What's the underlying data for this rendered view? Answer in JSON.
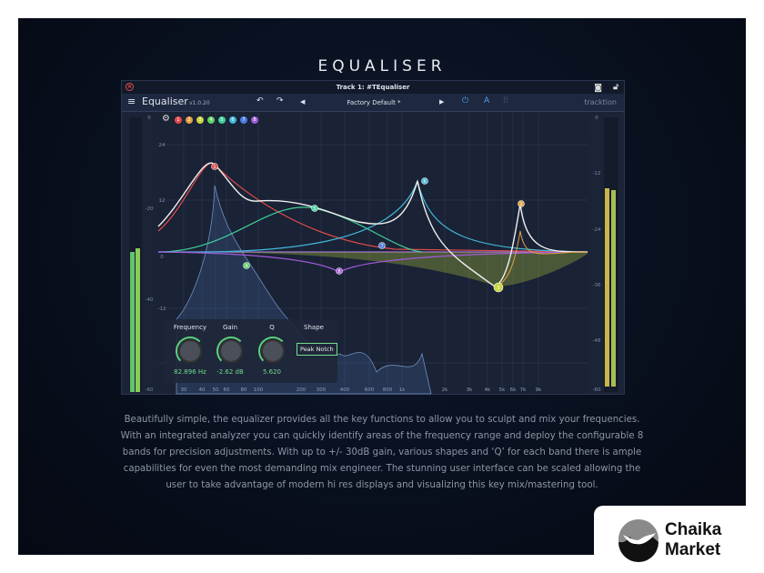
{
  "page": {
    "title": "EQUALISER",
    "description": "Beautifully simple, the equalizer provides all the key functions to allow you to sculpt and mix your frequencies. With an integrated analyzer you can quickly identify areas of the frequency range and deploy the configurable 8 bands for precision adjustments. With up to +/- 30dB gain, various shapes and ‘Q’ for each band there is ample capabilities for even the most demanding mix engineer. The stunning user interface can be scaled allowing the user to take advantage of modern hi res displays and visualizing this key mix/mastering tool."
  },
  "plugin": {
    "window_title": "Track 1: #TEqualiser",
    "name": "Equaliser",
    "version": "v1.0.20",
    "preset": "Factory Default *",
    "ab_a": "A",
    "ab_b": "B",
    "brand": "tracktion"
  },
  "bands": [
    {
      "n": "1",
      "color": "#e14b4b"
    },
    {
      "n": "2",
      "color": "#e3a040"
    },
    {
      "n": "3",
      "color": "#c8d640"
    },
    {
      "n": "4",
      "color": "#5fd35f"
    },
    {
      "n": "5",
      "color": "#3fcf9a"
    },
    {
      "n": "6",
      "color": "#3fb8d8"
    },
    {
      "n": "7",
      "color": "#4a7ee0"
    },
    {
      "n": "8",
      "color": "#a05ad8"
    }
  ],
  "axis": {
    "gain_left": [
      "24",
      "12",
      "0",
      "-12"
    ],
    "meter_left": [
      "0",
      "-20",
      "-40",
      "-60"
    ],
    "meter_right": [
      "0",
      "-12",
      "-24",
      "-36",
      "-48",
      "-60"
    ],
    "freq": [
      "30",
      "40",
      "50",
      "60",
      "80",
      "100",
      "200",
      "300",
      "400",
      "600",
      "800",
      "1k",
      "2k",
      "3k",
      "4k",
      "5k",
      "6k",
      "7k",
      "9k"
    ]
  },
  "band_panel": {
    "labels": [
      "Frequency",
      "Gain",
      "Q",
      "Shape"
    ],
    "frequency": "82.896 Hz",
    "gain": "-2.62 dB",
    "q": "5.620",
    "shape": "Peak Notch"
  },
  "logo": {
    "line1": "Chaika",
    "line2": "Market"
  }
}
